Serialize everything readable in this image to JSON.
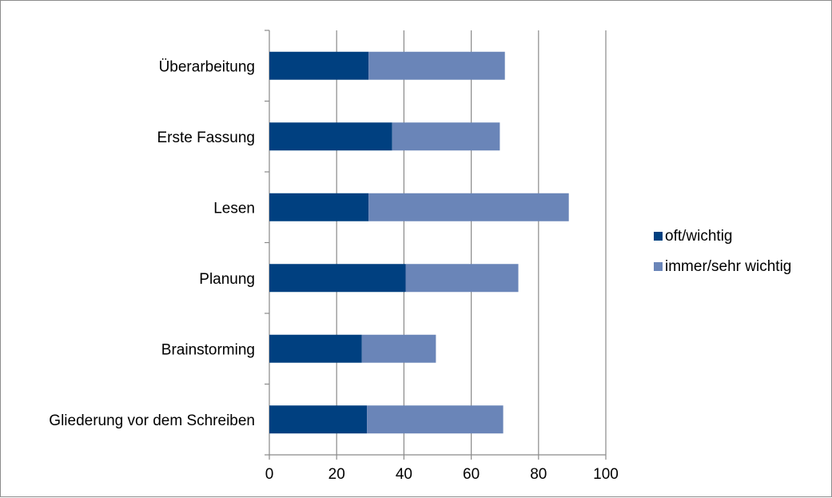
{
  "chart_data": {
    "type": "bar",
    "orientation": "horizontal",
    "stacked": true,
    "categories": [
      "Gliederung vor dem Schreiben",
      "Brainstorming",
      "Planung",
      "Lesen",
      "Erste Fassung",
      "Überarbeitung"
    ],
    "series": [
      {
        "name": "oft/wichtig",
        "color": "#004080",
        "values": [
          29,
          27.5,
          40.5,
          29.5,
          36.5,
          29.5
        ]
      },
      {
        "name": "immer/sehr wichtig",
        "color": "#6a85b8",
        "values": [
          40.5,
          22,
          33.5,
          59.5,
          32,
          40.5
        ]
      }
    ],
    "xlim": [
      0,
      100
    ],
    "xticks": [
      "0",
      "20",
      "40",
      "60",
      "80",
      "100"
    ],
    "grid": true,
    "legend_position": "right",
    "title": "",
    "xlabel": "",
    "ylabel": ""
  }
}
